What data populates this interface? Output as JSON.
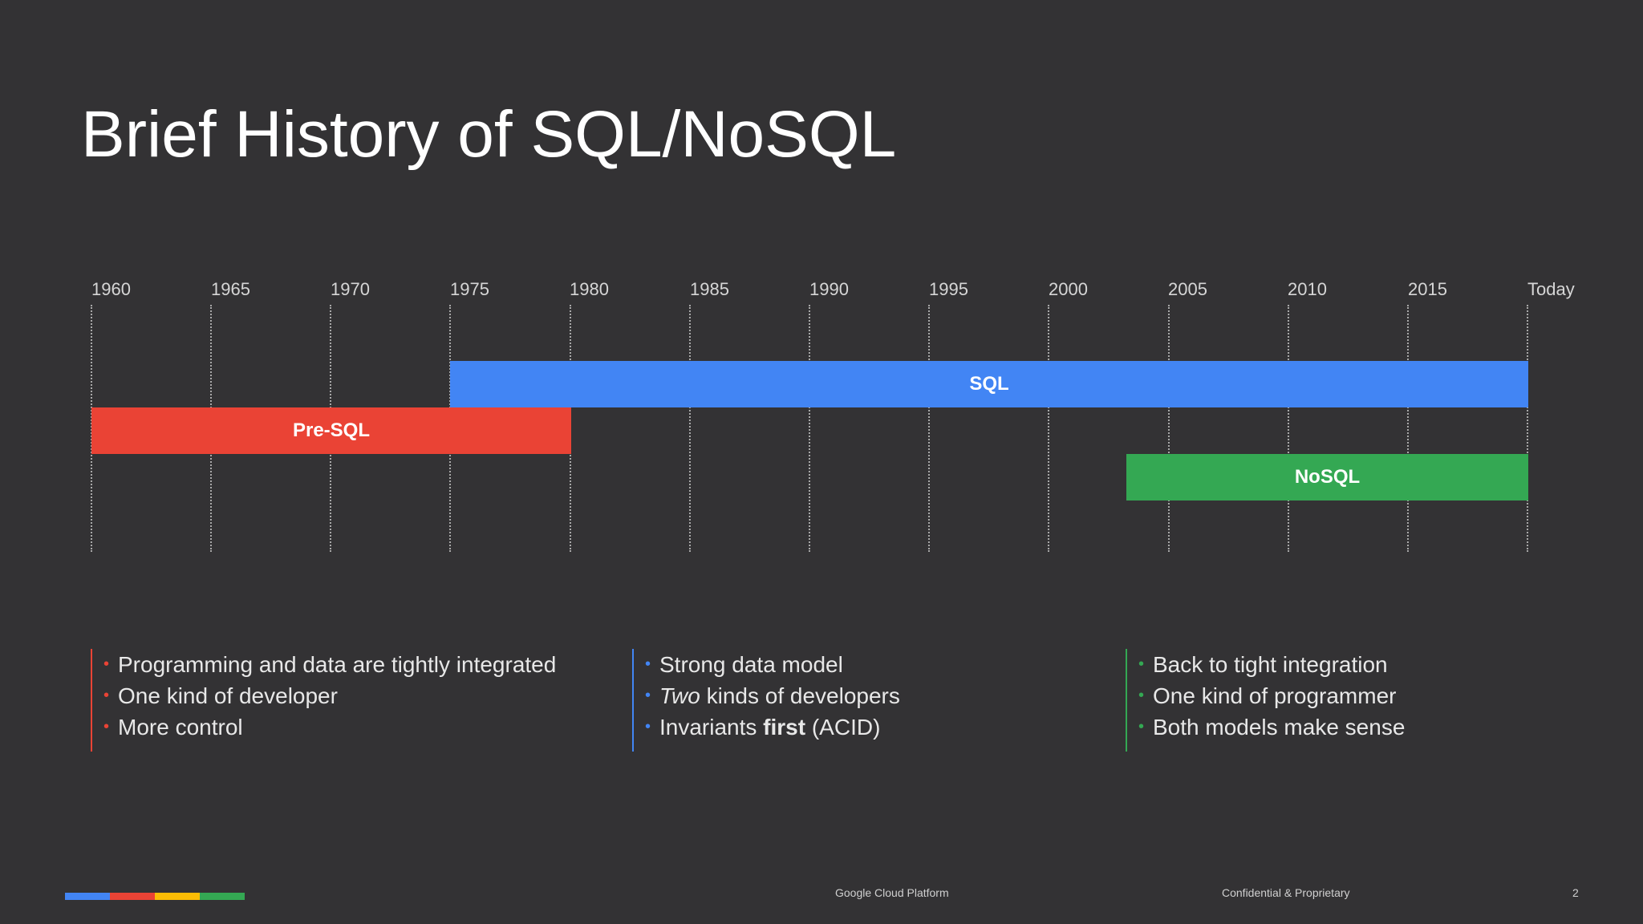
{
  "slide": {
    "title": "Brief History of SQL/NoSQL",
    "page_number": "2"
  },
  "timeline": {
    "ticks": [
      "1960",
      "1965",
      "1970",
      "1975",
      "1980",
      "1985",
      "1990",
      "1995",
      "2000",
      "2005",
      "2010",
      "2015",
      "Today"
    ],
    "bars": {
      "sql": {
        "label": "SQL",
        "start": "1975",
        "end": "Today",
        "color": "#4285f4"
      },
      "presql": {
        "label": "Pre-SQL",
        "start": "1960",
        "end": "1980",
        "color": "#ea4335"
      },
      "nosql": {
        "label": "NoSQL",
        "start": "2003",
        "end": "Today",
        "color": "#34a853"
      }
    }
  },
  "columns": {
    "presql": {
      "color": "#ea4335",
      "items": [
        "Programming and data are tightly integrated",
        "One kind of developer",
        "More control"
      ]
    },
    "sql": {
      "color": "#4285f4",
      "item1": "Strong data model",
      "item2_em": "Two",
      "item2_rest": " kinds of developers",
      "item3_pre": "Invariants ",
      "item3_strong": "first",
      "item3_post": " (ACID)"
    },
    "nosql": {
      "color": "#34a853",
      "items": [
        "Back to tight integration",
        "One kind of programmer",
        "Both models make sense"
      ]
    }
  },
  "footer": {
    "brand": "Google Cloud Platform",
    "confidential": "Confidential & Proprietary",
    "brand_colors": [
      "#4285f4",
      "#ea4335",
      "#fbbc05",
      "#34a853"
    ]
  }
}
